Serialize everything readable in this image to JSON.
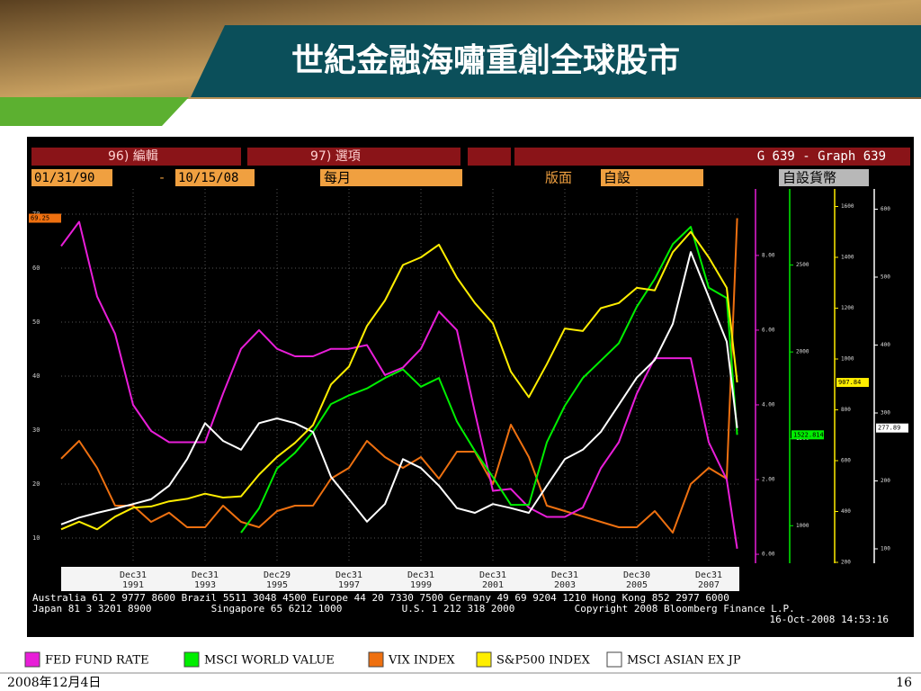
{
  "slide": {
    "title": "世紀金融海嘯重創全球股市",
    "date": "2008年12月4日",
    "page": 16
  },
  "bloomberg": {
    "field1": "96) 編輯",
    "field2": "97) 選項",
    "graph": "G 639 - Graph 639",
    "start": "01/31/90",
    "dash": "-",
    "end": "10/15/08",
    "period": "每月",
    "layout_label": "版面",
    "layout_value": "自設",
    "currency": "自設貨幣",
    "footer": [
      "Australia 61 2 9777 8600 Brazil 5511 3048 4500 Europe 44 20 7330 7500 Germany 49 69 9204 1210 Hong Kong 852 2977 6000",
      "Japan 81 3 3201 8900          Singapore 65 6212 1000          U.S. 1 212 318 2000          Copyright 2008 Bloomberg Finance L.P.",
      "16-Oct-2008 14:53:16"
    ]
  },
  "chart_data": {
    "type": "line",
    "grid": true,
    "xlim": [
      1990,
      2008.85
    ],
    "xticks": [
      {
        "value": 1992,
        "label": [
          "Dec31",
          "1991"
        ]
      },
      {
        "value": 1994,
        "label": [
          "Dec31",
          "1993"
        ]
      },
      {
        "value": 1996,
        "label": [
          "Dec29",
          "1995"
        ]
      },
      {
        "value": 1998,
        "label": [
          "Dec31",
          "1997"
        ]
      },
      {
        "value": 2000,
        "label": [
          "Dec31",
          "1999"
        ]
      },
      {
        "value": 2002,
        "label": [
          "Dec31",
          "2001"
        ]
      },
      {
        "value": 2004,
        "label": [
          "Dec31",
          "2003"
        ]
      },
      {
        "value": 2006,
        "label": [
          "Dec30",
          "2005"
        ]
      },
      {
        "value": 2008,
        "label": [
          "Dec31",
          "2007"
        ]
      }
    ],
    "x": [
      1990,
      1990.5,
      1991,
      1991.5,
      1992,
      1992.5,
      1993,
      1993.5,
      1994,
      1994.5,
      1995,
      1995.5,
      1996,
      1996.5,
      1997,
      1997.5,
      1998,
      1998.5,
      1999,
      1999.5,
      2000,
      2000.5,
      2001,
      2001.5,
      2002,
      2002.5,
      2003,
      2003.5,
      2004,
      2004.5,
      2005,
      2005.5,
      2006,
      2006.5,
      2007,
      2007.5,
      2008,
      2008.5,
      2008.79
    ],
    "series": [
      {
        "name": "FED FUND RATE",
        "color": "#e81ed8",
        "ylim": [
          -0.24,
          9.78
        ],
        "yticks": [
          {
            "value": 0,
            "label": "0.00"
          },
          {
            "value": 2,
            "label": "2.00"
          },
          {
            "value": 4,
            "label": "4.00"
          },
          {
            "value": 6,
            "label": "6.00"
          },
          {
            "value": 8,
            "label": "8.00"
          }
        ],
        "values": [
          8.25,
          8.9,
          6.9,
          5.9,
          4.0,
          3.3,
          3.0,
          3.0,
          3.0,
          4.3,
          5.5,
          6.0,
          5.5,
          5.3,
          5.3,
          5.5,
          5.5,
          5.6,
          4.8,
          5.0,
          5.5,
          6.5,
          6.0,
          3.8,
          1.7,
          1.75,
          1.25,
          1.0,
          1.0,
          1.25,
          2.3,
          3.0,
          4.3,
          5.25,
          5.25,
          5.25,
          3.0,
          2.0,
          0.15
        ]
      },
      {
        "name": "MSCI WORLD VALUE",
        "color": "#00ee00",
        "ylim": [
          784,
          2938
        ],
        "yticks": [
          1000,
          1500,
          2000,
          2500
        ],
        "values": [
          null,
          null,
          null,
          null,
          null,
          null,
          null,
          null,
          null,
          null,
          960,
          1100,
          1330,
          1420,
          1540,
          1700,
          1750,
          1790,
          1850,
          1900,
          1800,
          1850,
          1600,
          1430,
          1280,
          1120,
          1120,
          1480,
          1690,
          1850,
          1950,
          2050,
          2260,
          2420,
          2620,
          2720,
          2370,
          2310,
          1522.8145
        ]
      },
      {
        "name": "VIX INDEX",
        "color": "#ee7010",
        "ylim": [
          5.33,
          74.67
        ],
        "yticks": [
          10,
          20,
          30,
          40,
          50,
          60,
          70
        ],
        "values": [
          24.7,
          28,
          23,
          16,
          16,
          13,
          14.7,
          12,
          12,
          16,
          13,
          12,
          15,
          16,
          16,
          21,
          23,
          28,
          25,
          23,
          25,
          21,
          26,
          26,
          20,
          31,
          25,
          16,
          15,
          14,
          13,
          12,
          12,
          15,
          11,
          20,
          23,
          21,
          69.25
        ]
      },
      {
        "name": "S&P500 INDEX",
        "color": "#ffee00",
        "ylim": [
          196.5,
          1669
        ],
        "yticks": [
          200,
          400,
          600,
          800,
          1000,
          1200,
          1400,
          1600
        ],
        "values": [
          330,
          360,
          330,
          380,
          415,
          420,
          440,
          450,
          470,
          455,
          460,
          545,
          615,
          670,
          740,
          900,
          970,
          1130,
          1230,
          1370,
          1400,
          1450,
          1320,
          1220,
          1140,
          950,
          850,
          980,
          1120,
          1110,
          1200,
          1220,
          1280,
          1270,
          1420,
          1500,
          1400,
          1280,
          907.84
        ]
      },
      {
        "name": "MSCI ASIAN EX JP",
        "color": "#ffffff",
        "ylim": [
          78.8,
          629.8
        ],
        "yticks": [
          100,
          200,
          300,
          400,
          500,
          600
        ],
        "values": [
          136,
          146,
          153,
          159,
          166,
          173,
          193,
          232,
          285,
          259,
          246,
          285,
          292,
          285,
          272,
          206,
          173,
          140,
          166,
          232,
          219,
          193,
          160,
          153,
          166,
          160,
          153,
          193,
          232,
          246,
          272,
          312,
          352,
          378,
          431,
          537,
          471,
          405,
          277.89
        ]
      }
    ]
  }
}
